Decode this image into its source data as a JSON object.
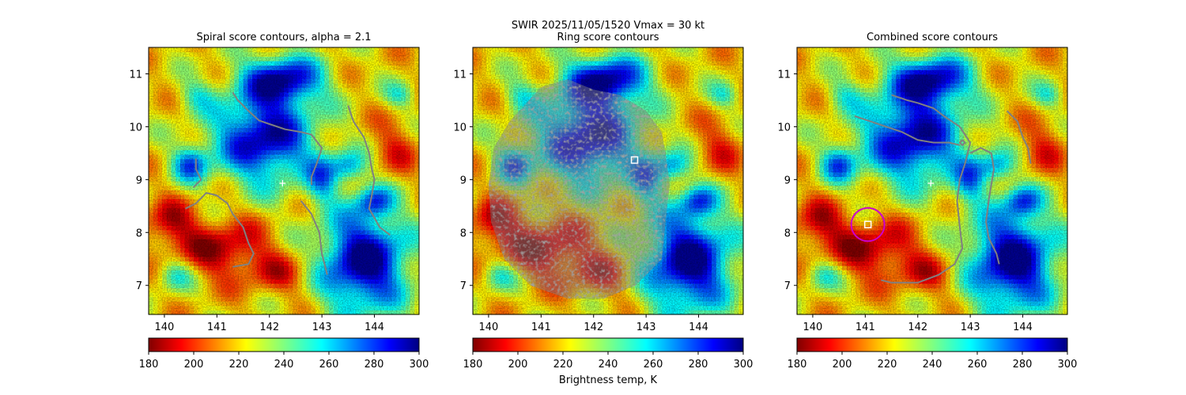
{
  "suptitle_line1": "SWIR  2025/11/05/1520    Vmax = 30 kt",
  "colorbar_label": "Brightness temp, K",
  "chart_data": {
    "type": "heatmap",
    "x_ticks": [
      140,
      141,
      142,
      143,
      144
    ],
    "y_ticks": [
      7,
      8,
      9,
      10,
      11
    ],
    "xlim": [
      139.7,
      144.85
    ],
    "ylim": [
      6.45,
      11.5
    ],
    "colorbar": {
      "ticks": [
        180,
        200,
        220,
        240,
        260,
        280,
        300
      ],
      "range": [
        180,
        300
      ],
      "colormap": "jet"
    },
    "panels": [
      {
        "title": "Spiral score contours, alpha =  2.1",
        "contour_color": "#808080",
        "center_marker": {
          "lon": 142.25,
          "lat": 8.93,
          "shape": "plus",
          "color": "#ffffff"
        },
        "contours": [
          [
            [
              141.3,
              10.65
            ],
            [
              141.4,
              10.5
            ],
            [
              141.6,
              10.3
            ],
            [
              141.8,
              10.12
            ],
            [
              142.0,
              10.05
            ],
            [
              142.3,
              9.95
            ],
            [
              142.6,
              9.9
            ],
            [
              142.8,
              9.85
            ],
            [
              143.0,
              9.6
            ],
            [
              142.9,
              9.3
            ],
            [
              142.8,
              9.05
            ],
            [
              142.8,
              8.9
            ]
          ],
          [
            [
              140.4,
              8.45
            ],
            [
              140.6,
              8.55
            ],
            [
              140.8,
              8.75
            ],
            [
              141.0,
              8.7
            ],
            [
              141.2,
              8.55
            ],
            [
              141.3,
              8.35
            ],
            [
              141.5,
              8.1
            ],
            [
              141.6,
              7.8
            ],
            [
              141.7,
              7.6
            ],
            [
              141.6,
              7.4
            ],
            [
              141.3,
              7.35
            ]
          ],
          [
            [
              140.6,
              9.4
            ],
            [
              140.6,
              9.2
            ],
            [
              140.7,
              9.0
            ],
            [
              140.55,
              8.85
            ]
          ],
          [
            [
              142.6,
              8.6
            ],
            [
              142.8,
              8.35
            ],
            [
              142.95,
              8.0
            ],
            [
              143.0,
              7.6
            ],
            [
              143.05,
              7.4
            ],
            [
              143.1,
              7.2
            ]
          ],
          [
            [
              143.5,
              10.4
            ],
            [
              143.6,
              10.1
            ],
            [
              143.8,
              9.8
            ],
            [
              143.9,
              9.5
            ],
            [
              143.95,
              9.2
            ],
            [
              144.0,
              9.0
            ],
            [
              143.95,
              8.7
            ],
            [
              143.9,
              8.45
            ],
            [
              144.1,
              8.1
            ],
            [
              144.3,
              7.95
            ]
          ]
        ]
      },
      {
        "title": "Ring score contours",
        "mask_color": "#808080",
        "center_marker": {
          "lon": 142.78,
          "lat": 9.37,
          "shape": "square",
          "color": "#ffffff"
        },
        "mask_outline": [
          [
            141.0,
            10.75
          ],
          [
            141.5,
            10.9
          ],
          [
            142.0,
            10.7
          ],
          [
            142.5,
            10.6
          ],
          [
            143.0,
            10.3
          ],
          [
            143.3,
            9.9
          ],
          [
            143.4,
            9.3
          ],
          [
            143.45,
            8.9
          ],
          [
            143.4,
            8.5
          ],
          [
            143.35,
            8.0
          ],
          [
            143.3,
            7.5
          ],
          [
            142.8,
            7.0
          ],
          [
            142.2,
            6.75
          ],
          [
            141.5,
            6.75
          ],
          [
            140.8,
            7.0
          ],
          [
            140.3,
            7.5
          ],
          [
            140.05,
            8.2
          ],
          [
            140.0,
            8.9
          ],
          [
            140.1,
            9.6
          ],
          [
            140.4,
            10.1
          ]
        ]
      },
      {
        "title": "Combined score contours",
        "contour_color": "#808080",
        "center_marker": {
          "lon": 142.25,
          "lat": 8.93,
          "shape": "plus",
          "color": "#ffffff"
        },
        "best_fix": {
          "lon": 141.05,
          "lat": 8.15,
          "shape": "square",
          "color": "#ffffff",
          "ring_color": "#cc00cc"
        },
        "contours": [
          [
            [
              141.5,
              10.6
            ],
            [
              141.8,
              10.5
            ],
            [
              142.0,
              10.45
            ],
            [
              142.3,
              10.35
            ],
            [
              142.5,
              10.2
            ],
            [
              142.8,
              10.0
            ],
            [
              143.0,
              9.7
            ],
            [
              142.9,
              9.3
            ],
            [
              142.8,
              9.0
            ],
            [
              142.75,
              8.6
            ],
            [
              142.8,
              8.1
            ],
            [
              142.85,
              7.7
            ],
            [
              142.7,
              7.4
            ],
            [
              142.4,
              7.2
            ],
            [
              142.0,
              7.05
            ],
            [
              141.7,
              7.05
            ],
            [
              141.5,
              7.05
            ],
            [
              141.3,
              7.1
            ]
          ],
          [
            [
              140.8,
              10.2
            ],
            [
              141.1,
              10.1
            ],
            [
              141.4,
              10.0
            ],
            [
              141.7,
              9.9
            ],
            [
              142.0,
              9.75
            ],
            [
              142.3,
              9.7
            ],
            [
              142.6,
              9.7
            ],
            [
              142.8,
              9.65
            ]
          ],
          [
            [
              142.85,
              9.75
            ],
            [
              142.9,
              9.7
            ],
            [
              142.85,
              9.65
            ],
            [
              142.8,
              9.7
            ],
            [
              142.85,
              9.75
            ]
          ],
          [
            [
              143.0,
              9.5
            ],
            [
              143.2,
              9.6
            ],
            [
              143.4,
              9.5
            ],
            [
              143.45,
              9.2
            ],
            [
              143.4,
              8.9
            ],
            [
              143.35,
              8.6
            ],
            [
              143.3,
              8.2
            ],
            [
              143.35,
              7.9
            ],
            [
              143.5,
              7.6
            ],
            [
              143.55,
              7.4
            ]
          ],
          [
            [
              143.7,
              10.3
            ],
            [
              143.9,
              10.1
            ],
            [
              144.0,
              9.8
            ],
            [
              144.1,
              9.6
            ],
            [
              144.15,
              9.3
            ]
          ]
        ]
      }
    ]
  }
}
